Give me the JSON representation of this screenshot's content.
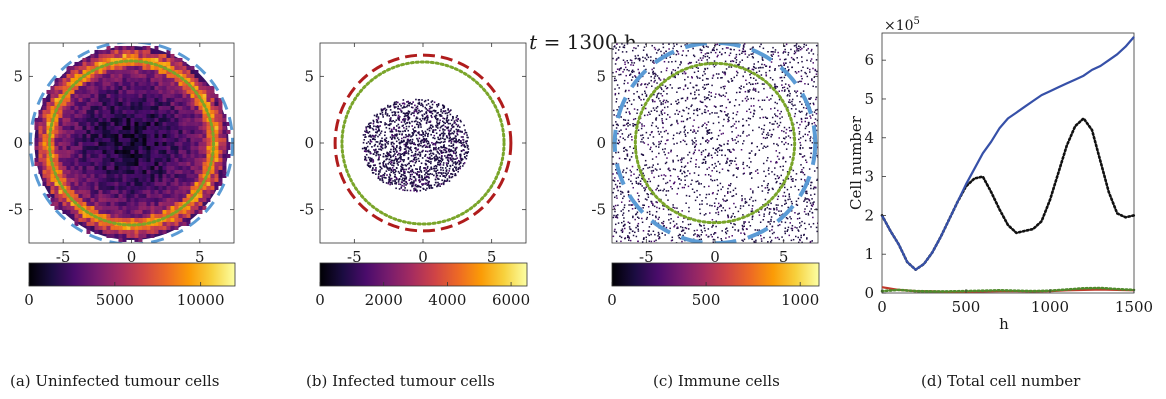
{
  "figure": {
    "title_var": "t",
    "title_rest": " = 1300 h",
    "captions": [
      "(a) Uninfected tumour cells",
      "(b) Infected tumour cells",
      "(c) Immune cells",
      "(d) Total cell number"
    ]
  },
  "colors": {
    "blue_dashed": "#5b9bd5",
    "red_dashed": "#b01c1c",
    "green_dotted": "#7aa52a",
    "line_total": "#3650a8",
    "line_dotted": "#111111",
    "line_red": "#c0392b",
    "line_green": "#4f8a2b",
    "inferno": [
      "#000004",
      "#1b0c41",
      "#4a0c6b",
      "#781c6d",
      "#a52c60",
      "#cf4446",
      "#ed6925",
      "#fb9b06",
      "#f7d13d",
      "#fcffa4"
    ]
  },
  "chart_data": [
    {
      "type": "heatmap",
      "panel": "a",
      "xticks": [
        "-5",
        "0",
        "5"
      ],
      "yticks": [
        "5",
        "0",
        "-5"
      ],
      "xlim": [
        -7.5,
        7.5
      ],
      "ylim": [
        -7.5,
        7.5
      ],
      "colorbar_ticks": [
        "0",
        "5000",
        "10000"
      ],
      "colorbar_range": [
        0,
        12000
      ],
      "circles": [
        {
          "style": "dashed",
          "color": "blue",
          "radius": 7.4
        },
        {
          "style": "dotted",
          "color": "green",
          "radius": 6.0
        }
      ]
    },
    {
      "type": "heatmap",
      "panel": "b",
      "xticks": [
        "-5",
        "0",
        "5"
      ],
      "yticks": [
        "5",
        "0",
        "-5"
      ],
      "xlim": [
        -7.5,
        7.5
      ],
      "ylim": [
        -7.5,
        7.5
      ],
      "colorbar_ticks": [
        "0",
        "2000",
        "4000",
        "6000"
      ],
      "colorbar_range": [
        0,
        6500
      ],
      "circles": [
        {
          "style": "dashed",
          "color": "red",
          "radius": 6.4
        },
        {
          "style": "dotted",
          "color": "green",
          "radius": 5.9
        }
      ]
    },
    {
      "type": "heatmap",
      "panel": "c",
      "xticks": [
        "-5",
        "0",
        "5"
      ],
      "yticks": [
        "5",
        "0",
        "-5"
      ],
      "xlim": [
        -7.5,
        7.5
      ],
      "ylim": [
        -7.5,
        7.5
      ],
      "colorbar_ticks": [
        "0",
        "500",
        "1000"
      ],
      "colorbar_range": [
        0,
        1100
      ],
      "circles": [
        {
          "style": "dashed",
          "color": "blue",
          "radius": 7.3
        },
        {
          "style": "dotted",
          "color": "green",
          "radius": 5.8
        }
      ]
    },
    {
      "type": "line",
      "panel": "d",
      "xlabel": "h",
      "ylabel": "Cell number",
      "exponent_label": "×10",
      "exponent_power": "5",
      "xlim": [
        0,
        1500
      ],
      "ylim": [
        0,
        6.7
      ],
      "xticks": [
        "0",
        "500",
        "1000",
        "1500"
      ],
      "xtick_values": [
        0,
        500,
        1000,
        1500
      ],
      "yticks": [
        "0",
        "1",
        "2",
        "3",
        "4",
        "5",
        "6"
      ],
      "ytick_values": [
        0,
        1,
        2,
        3,
        4,
        5,
        6
      ],
      "series": [
        {
          "style": "solid",
          "color": "blue",
          "x": [
            0,
            50,
            100,
            150,
            200,
            250,
            300,
            350,
            400,
            450,
            500,
            550,
            600,
            650,
            700,
            750,
            800,
            850,
            900,
            950,
            1000,
            1050,
            1100,
            1150,
            1200,
            1250,
            1300,
            1350,
            1400,
            1450,
            1500
          ],
          "y": [
            2.0,
            1.6,
            1.25,
            0.8,
            0.6,
            0.75,
            1.05,
            1.45,
            1.9,
            2.35,
            2.8,
            3.2,
            3.6,
            3.9,
            4.25,
            4.5,
            4.65,
            4.8,
            4.95,
            5.1,
            5.2,
            5.3,
            5.4,
            5.5,
            5.6,
            5.75,
            5.85,
            6.0,
            6.15,
            6.35,
            6.6
          ]
        },
        {
          "style": "dotted",
          "color": "black",
          "x": [
            0,
            50,
            100,
            150,
            200,
            250,
            300,
            350,
            400,
            450,
            500,
            550,
            600,
            650,
            700,
            750,
            800,
            850,
            900,
            950,
            1000,
            1050,
            1100,
            1150,
            1200,
            1250,
            1300,
            1350,
            1400,
            1450,
            1500
          ],
          "y": [
            2.0,
            1.6,
            1.25,
            0.8,
            0.6,
            0.75,
            1.05,
            1.45,
            1.9,
            2.35,
            2.75,
            2.95,
            3.0,
            2.6,
            2.15,
            1.75,
            1.55,
            1.6,
            1.65,
            1.85,
            2.4,
            3.1,
            3.8,
            4.3,
            4.5,
            4.2,
            3.4,
            2.6,
            2.05,
            1.95,
            2.0
          ]
        },
        {
          "style": "solid",
          "color": "red",
          "x": [
            0,
            100,
            200,
            300,
            400,
            500,
            600,
            700,
            800,
            900,
            1000,
            1100,
            1200,
            1300,
            1400,
            1500
          ],
          "y": [
            0.15,
            0.08,
            0.05,
            0.04,
            0.03,
            0.03,
            0.04,
            0.05,
            0.05,
            0.04,
            0.05,
            0.07,
            0.08,
            0.09,
            0.08,
            0.07
          ]
        },
        {
          "style": "dotted",
          "color": "green",
          "x": [
            0,
            100,
            200,
            300,
            400,
            500,
            600,
            700,
            800,
            900,
            1000,
            1100,
            1200,
            1300,
            1400,
            1500
          ],
          "y": [
            0.05,
            0.08,
            0.05,
            0.04,
            0.04,
            0.05,
            0.06,
            0.07,
            0.06,
            0.05,
            0.06,
            0.09,
            0.12,
            0.13,
            0.1,
            0.08
          ]
        }
      ]
    }
  ]
}
